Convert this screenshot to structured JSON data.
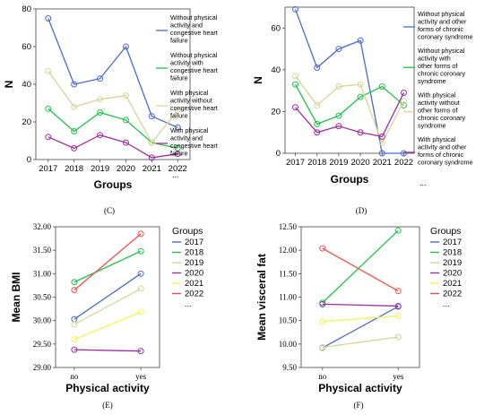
{
  "chart_data": [
    {
      "panel": "(C)",
      "type": "line",
      "xlabel": "Groups",
      "ylabel": "N",
      "categories": [
        "2017",
        "2018",
        "2019",
        "2020",
        "2021",
        "2022"
      ],
      "ylim": [
        0,
        80
      ],
      "yticks": [
        0,
        20,
        40,
        60,
        80
      ],
      "grid": false,
      "legend_position": "right",
      "legend_more": "...",
      "series": [
        {
          "name": "Without physical activity and congestive heart failure",
          "color": "#4a6bc7",
          "values": [
            75,
            40,
            43,
            60,
            23,
            17
          ]
        },
        {
          "name": "Without physical activity with congestive heart failure",
          "color": "#1fc24a",
          "values": [
            27,
            15,
            25,
            21,
            9,
            6
          ]
        },
        {
          "name": "With physical activity without congestive heart failure",
          "color": "#d6d49a",
          "values": [
            47,
            28,
            32,
            34,
            9,
            26
          ]
        },
        {
          "name": "With physical activity and congestive heart failure",
          "color": "#9b2fa0",
          "values": [
            12,
            6,
            13,
            9,
            1,
            3
          ]
        }
      ]
    },
    {
      "panel": "(D)",
      "type": "line",
      "xlabel": "Groups",
      "ylabel": "N",
      "categories": [
        "2017",
        "2018",
        "2019",
        "2020",
        "2021",
        "2022"
      ],
      "ylim": [
        0,
        70
      ],
      "yticks": [
        0,
        20,
        40,
        60
      ],
      "grid": false,
      "legend_position": "right",
      "legend_more": "...",
      "series": [
        {
          "name": "Without physical activity and other forms of chronic coronary syndrome",
          "color": "#4a6bc7",
          "values": [
            69,
            41,
            50,
            54,
            0,
            0
          ]
        },
        {
          "name": "Without physical activity with other forms of chronic coronary syndrome",
          "color": "#1fc24a",
          "values": [
            33,
            14,
            18,
            27,
            32,
            23
          ]
        },
        {
          "name": "With physical activity without other forms of chronic coronary syndrome",
          "color": "#d6d49a",
          "values": [
            37,
            23,
            32,
            33,
            5,
            25
          ]
        },
        {
          "name": "With physical activity and other forms of chronic coronary syndrome",
          "color": "#9b2fa0",
          "values": [
            22,
            10,
            13,
            10,
            8,
            29
          ]
        }
      ]
    },
    {
      "panel": "(E)",
      "type": "line",
      "xlabel": "Physical activity",
      "ylabel": "Mean BMI",
      "categories": [
        "no",
        "yes"
      ],
      "ylim": [
        29.0,
        32.0
      ],
      "yticks": [
        "29.00",
        "29.50",
        "30.00",
        "30.50",
        "31.00",
        "31.50",
        "32.00"
      ],
      "grid": false,
      "legend_title": "Groups",
      "legend_position": "right",
      "legend_more": "...",
      "series": [
        {
          "name": "2017",
          "color": "#4a6bc7",
          "values": [
            30.03,
            31.0
          ]
        },
        {
          "name": "2018",
          "color": "#1fc24a",
          "values": [
            30.82,
            31.48
          ]
        },
        {
          "name": "2019",
          "color": "#d6d49a",
          "values": [
            29.92,
            30.68
          ]
        },
        {
          "name": "2020",
          "color": "#9b2fa0",
          "values": [
            29.38,
            29.35
          ]
        },
        {
          "name": "2021",
          "color": "#f4f25a",
          "values": [
            29.6,
            30.18
          ]
        },
        {
          "name": "2022",
          "color": "#f0504a",
          "values": [
            30.65,
            31.85
          ]
        }
      ]
    },
    {
      "panel": "(F)",
      "type": "line",
      "xlabel": "Physical activity",
      "ylabel": "Mean visceral fat",
      "categories": [
        "no",
        "yes"
      ],
      "ylim": [
        9.5,
        12.5
      ],
      "yticks": [
        "9.50",
        "10.00",
        "10.50",
        "11.00",
        "11.50",
        "12.00",
        "12.50"
      ],
      "grid": false,
      "legend_title": "Groups",
      "legend_position": "right",
      "legend_more": "...",
      "series": [
        {
          "name": "2017",
          "color": "#4a6bc7",
          "values": [
            9.92,
            10.8
          ]
        },
        {
          "name": "2018",
          "color": "#1fc24a",
          "values": [
            10.88,
            12.42
          ]
        },
        {
          "name": "2019",
          "color": "#d6d49a",
          "values": [
            9.93,
            10.15
          ]
        },
        {
          "name": "2020",
          "color": "#9b2fa0",
          "values": [
            10.85,
            10.81
          ]
        },
        {
          "name": "2021",
          "color": "#f4f25a",
          "values": [
            10.48,
            10.6
          ]
        },
        {
          "name": "2022",
          "color": "#f0504a",
          "values": [
            12.04,
            11.13
          ]
        }
      ]
    }
  ]
}
